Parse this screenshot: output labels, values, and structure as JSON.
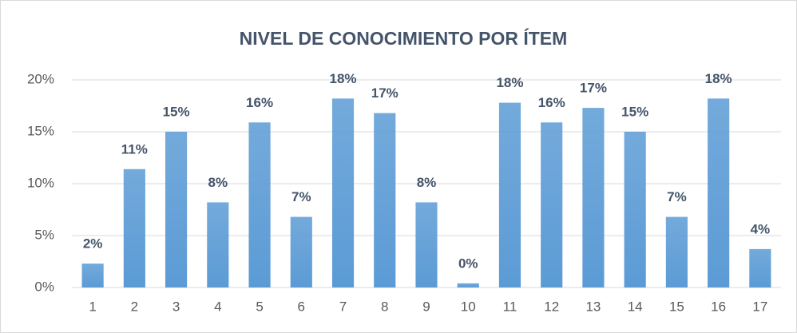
{
  "chart_data": {
    "type": "bar",
    "title": "NIVEL DE CONOCIMIENTO POR ÍTEM",
    "categories": [
      "1",
      "2",
      "3",
      "4",
      "5",
      "6",
      "7",
      "8",
      "9",
      "10",
      "11",
      "12",
      "13",
      "14",
      "15",
      "16",
      "17"
    ],
    "values": [
      2.3,
      11.4,
      15.0,
      8.2,
      15.9,
      6.8,
      18.2,
      16.8,
      8.2,
      0.4,
      17.8,
      15.9,
      17.3,
      15.0,
      6.8,
      18.2,
      3.7
    ],
    "value_labels": [
      "2%",
      "11%",
      "15%",
      "8%",
      "16%",
      "7%",
      "18%",
      "17%",
      "8%",
      "0%",
      "18%",
      "16%",
      "17%",
      "15%",
      "7%",
      "18%",
      "4%"
    ],
    "color": "#5b9bd5",
    "ylim": [
      0,
      20
    ],
    "yticks": [
      {
        "value": 0,
        "label": "0%"
      },
      {
        "value": 5,
        "label": "5%"
      },
      {
        "value": 10,
        "label": "10%"
      },
      {
        "value": 15,
        "label": "15%"
      },
      {
        "value": 20,
        "label": "20%"
      }
    ],
    "grid": true
  }
}
